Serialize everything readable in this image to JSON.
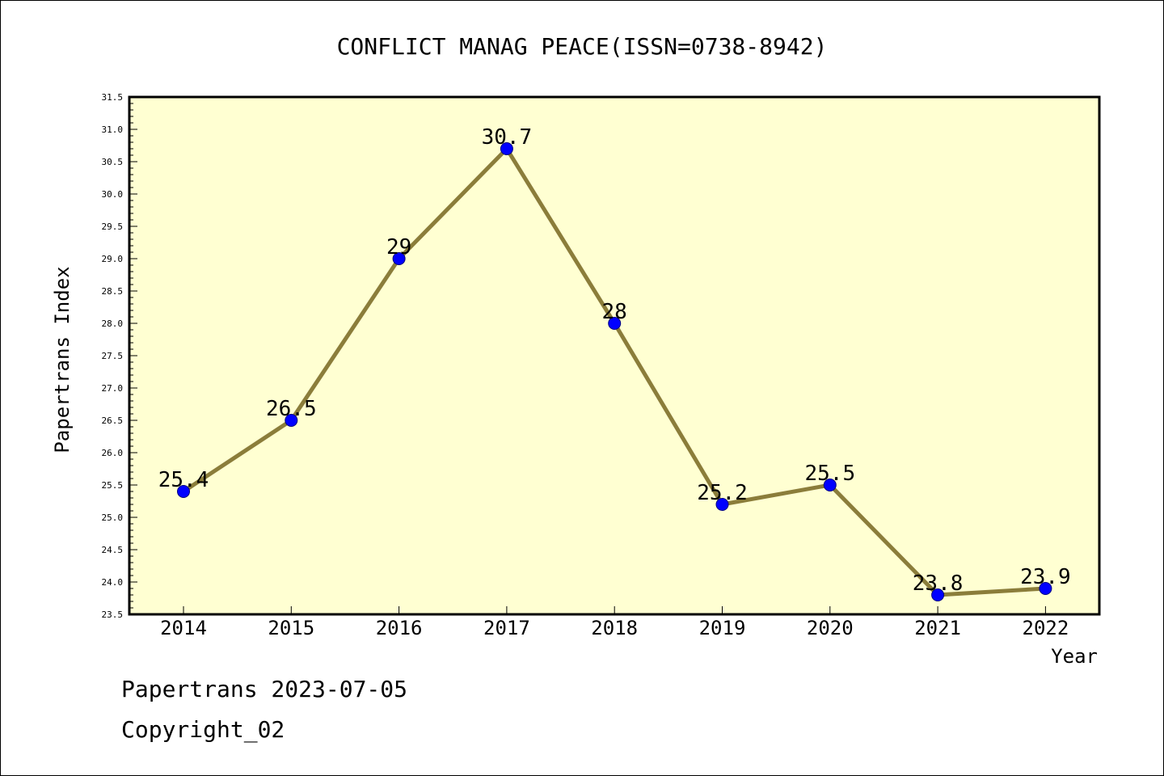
{
  "chart_data": {
    "type": "line",
    "title": "CONFLICT MANAG PEACE(ISSN=0738-8942)",
    "xlabel": "Year",
    "ylabel": "Papertrans Index",
    "categories": [
      "2014",
      "2015",
      "2016",
      "2017",
      "2018",
      "2019",
      "2020",
      "2021",
      "2022"
    ],
    "series": [
      {
        "values": [
          25.4,
          26.5,
          29,
          30.7,
          28,
          25.2,
          25.5,
          23.8,
          23.9
        ],
        "data_labels": [
          "25.4",
          "26.5",
          "29",
          "30.7",
          "28",
          "25.2",
          "25.5",
          "23.8",
          "23.9"
        ]
      }
    ],
    "ylim": [
      23.5,
      31.5
    ],
    "yticks": [
      "23.5",
      "24.0",
      "24.5",
      "25.0",
      "25.5",
      "26.0",
      "26.5",
      "27.0",
      "27.5",
      "28.0",
      "28.5",
      "29.0",
      "29.5",
      "30.0",
      "30.5",
      "31.0",
      "31.5"
    ],
    "grid": false,
    "colors": {
      "plot_background": "#ffffd2",
      "line": "#8b7d3a",
      "marker": "#0000ff",
      "marker_edge": "#000080"
    }
  },
  "footer": {
    "line1": "Papertrans 2023-07-05",
    "line2": "Copyright_02"
  }
}
